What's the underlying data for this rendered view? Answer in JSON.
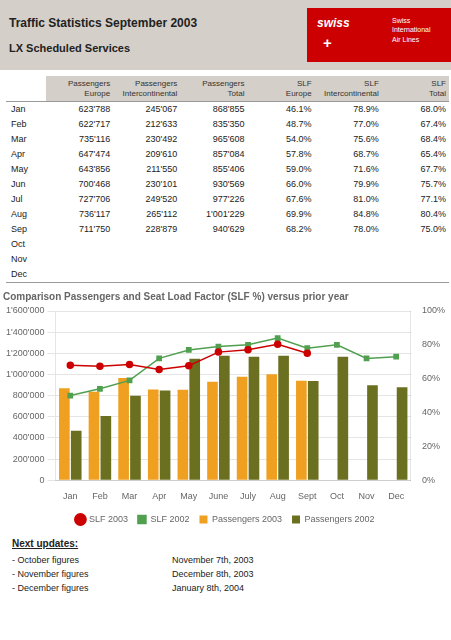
{
  "title": "Traffic Statistics September 2003",
  "subtitle": "LX Scheduled Services",
  "logo": [
    "swiss",
    "+",
    "Swiss\nInternational\nAir Lines"
  ],
  "table": {
    "columns": [
      "Passengers\nEurope",
      "Passengers\nIntercontinental",
      "Passengers\nTotal",
      "SLF\nEurope",
      "SLF\nIntercontinental",
      "SLF\nTotal"
    ],
    "rows": [
      {
        "label": "Jan",
        "cells": [
          "623'788",
          "245'067",
          "868'855",
          "46.1%",
          "78.9%",
          "68.0%"
        ]
      },
      {
        "label": "Feb",
        "cells": [
          "622'717",
          "212'633",
          "835'350",
          "48.7%",
          "77.0%",
          "67.4%"
        ]
      },
      {
        "label": "Mar",
        "cells": [
          "735'116",
          "230'492",
          "965'608",
          "54.0%",
          "75.6%",
          "68.4%"
        ]
      },
      {
        "label": "Apr",
        "cells": [
          "647'474",
          "209'610",
          "857'084",
          "57.8%",
          "68.7%",
          "65.4%"
        ]
      },
      {
        "label": "May",
        "cells": [
          "643'856",
          "211'550",
          "855'406",
          "59.0%",
          "71.6%",
          "67.7%"
        ]
      },
      {
        "label": "Jun",
        "cells": [
          "700'468",
          "230'101",
          "930'569",
          "66.0%",
          "79.9%",
          "75.7%"
        ]
      },
      {
        "label": "Jul",
        "cells": [
          "727'706",
          "249'520",
          "977'226",
          "67.6%",
          "81.0%",
          "77.1%"
        ]
      },
      {
        "label": "Aug",
        "cells": [
          "736'117",
          "265'112",
          "1'001'229",
          "69.9%",
          "84.8%",
          "80.4%"
        ]
      },
      {
        "label": "Sep",
        "cells": [
          "711'750",
          "228'879",
          "940'629",
          "68.2%",
          "78.0%",
          "75.0%"
        ]
      },
      {
        "label": "Oct"
      },
      {
        "label": "Nov"
      },
      {
        "label": "Dec"
      }
    ]
  },
  "chart_data": {
    "type": "bar",
    "title": "Comparison Passengers and Seat Load Factor (SLF %) versus prior year",
    "categories": [
      "Jan",
      "Feb",
      "Mar",
      "Apr",
      "May",
      "June",
      "July",
      "Aug",
      "Sept",
      "Oct",
      "Nov",
      "Dec"
    ],
    "series": [
      {
        "name": "Passengers 2003",
        "type": "bar",
        "color": "#f0a020",
        "values": [
          868855,
          835350,
          965608,
          857084,
          855406,
          930569,
          977226,
          1001229,
          940629,
          null,
          null,
          null
        ]
      },
      {
        "name": "Passengers 2002",
        "type": "bar",
        "color": "#6b7020",
        "values": [
          468000,
          608000,
          798000,
          848000,
          1148000,
          1178000,
          1168000,
          1178000,
          938000,
          1168000,
          898000,
          878000
        ]
      },
      {
        "name": "SLF 2003",
        "type": "line",
        "axis": "y2",
        "color": "#cc0000",
        "marker": "circle",
        "values": [
          68.0,
          67.4,
          68.4,
          65.4,
          67.7,
          75.7,
          77.1,
          80.4,
          75.0,
          null,
          null,
          null
        ]
      },
      {
        "name": "SLF 2002",
        "type": "line",
        "axis": "y2",
        "color": "#50a050",
        "marker": "square",
        "values": [
          50.0,
          54.0,
          59.0,
          72.0,
          77.0,
          79.0,
          80.0,
          84.0,
          78.0,
          80.0,
          72.0,
          73.0
        ]
      }
    ],
    "ylim": [
      0,
      1600000
    ],
    "yticks": [
      0,
      {
        "value": 200000,
        "label": "200'000"
      },
      {
        "value": 400000,
        "label": "400'000"
      },
      {
        "value": 600000,
        "label": "600'000"
      },
      {
        "value": 800000,
        "label": "800'000"
      },
      {
        "value": 1000000,
        "label": "1'000'000"
      },
      {
        "value": 1200000,
        "label": "1'200'000"
      },
      {
        "value": 1400000,
        "label": "1'400'000"
      },
      {
        "value": 1600000,
        "label": "1'600'000"
      }
    ],
    "y2lim": [
      0,
      100
    ],
    "y2ticks": [
      {
        "value": 0,
        "label": "0%"
      },
      {
        "value": 20,
        "label": "20%"
      },
      {
        "value": 40,
        "label": "40%"
      },
      {
        "value": 60,
        "label": "60%"
      },
      {
        "value": 80,
        "label": "80%"
      },
      {
        "value": 100,
        "label": "100%"
      }
    ],
    "grid": true,
    "legend": "bottom"
  },
  "notes": {
    "title": "Next updates:",
    "rows": [
      [
        "- October figures",
        "November 7th, 2003"
      ],
      [
        "- November figures",
        "December 8th, 2003"
      ],
      [
        "- December figures",
        "January 8th, 2004"
      ]
    ]
  }
}
